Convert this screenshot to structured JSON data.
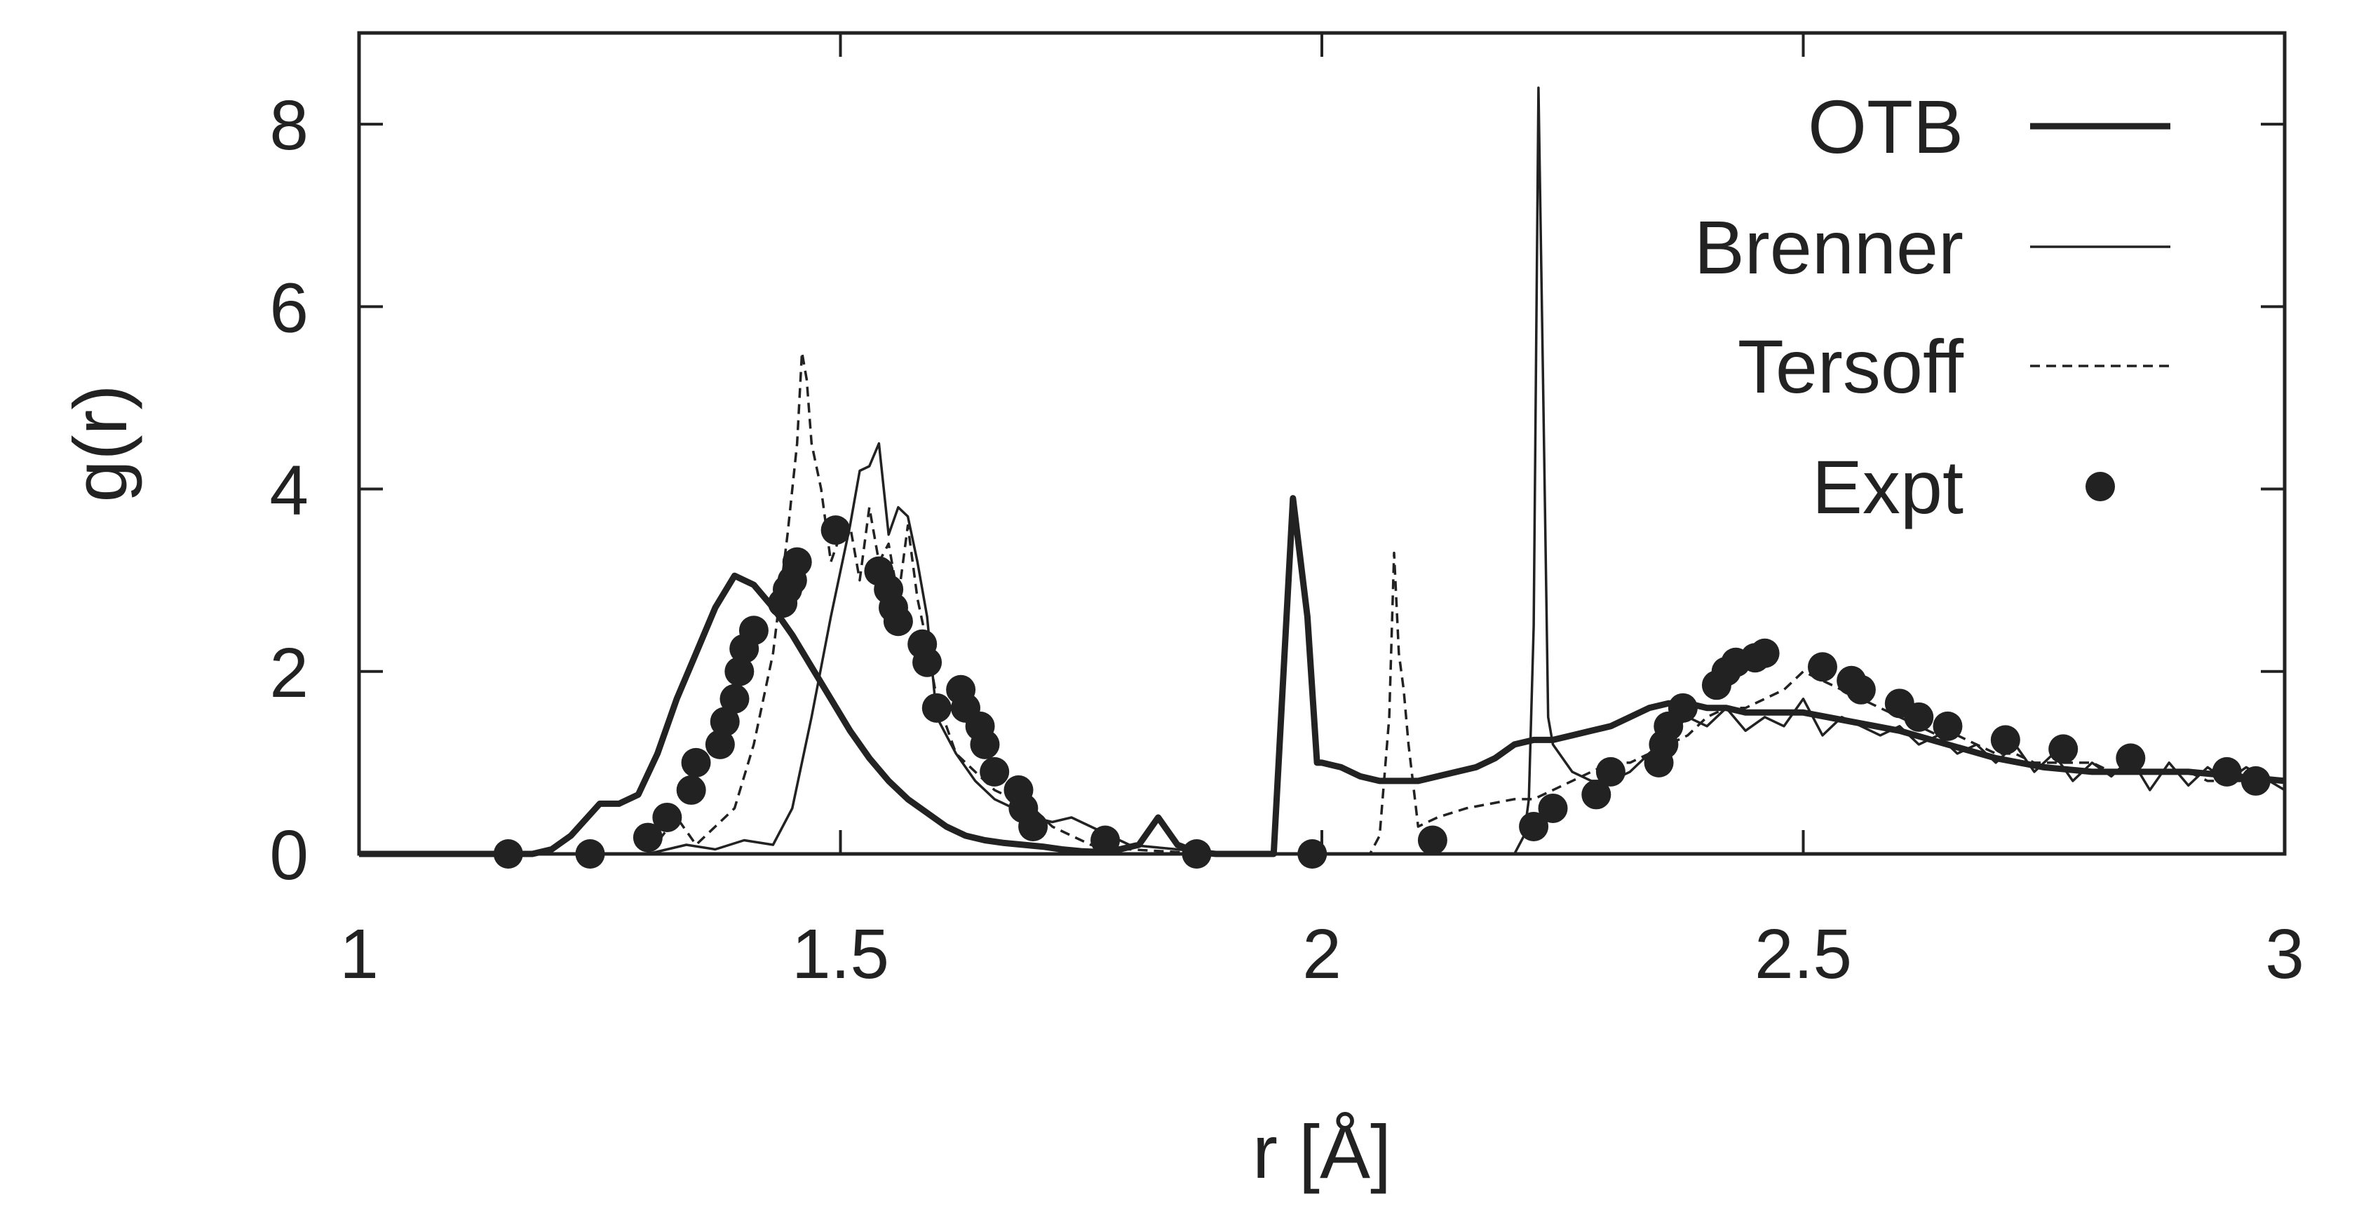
{
  "chart_data": {
    "type": "line",
    "title": "",
    "xlabel": "r [Å]",
    "ylabel": "g(r)",
    "xlim": [
      1,
      3
    ],
    "ylim": [
      0,
      9
    ],
    "xticks": [
      1,
      1.5,
      2,
      2.5,
      3
    ],
    "xtick_labels": [
      "1",
      "1.5",
      "2",
      "2.5",
      "3"
    ],
    "yticks": [
      0,
      2,
      4,
      6,
      8
    ],
    "ytick_labels": [
      "0",
      "2",
      "4",
      "6",
      "8"
    ],
    "grid": false,
    "legend_placement": "top-right",
    "series": [
      {
        "name": "OTB",
        "style": "thick-solid",
        "x": [
          1.0,
          1.18,
          1.2,
          1.22,
          1.25,
          1.27,
          1.29,
          1.31,
          1.33,
          1.35,
          1.37,
          1.39,
          1.41,
          1.43,
          1.45,
          1.47,
          1.49,
          1.51,
          1.53,
          1.55,
          1.57,
          1.59,
          1.61,
          1.63,
          1.65,
          1.67,
          1.69,
          1.71,
          1.73,
          1.75,
          1.77,
          1.79,
          1.81,
          1.83,
          1.85,
          1.87,
          1.89,
          1.91,
          1.93,
          1.95,
          1.97,
          1.985,
          1.995,
          2.0,
          2.02,
          2.04,
          2.06,
          2.08,
          2.1,
          2.12,
          2.14,
          2.16,
          2.18,
          2.2,
          2.22,
          2.24,
          2.26,
          2.28,
          2.3,
          2.32,
          2.34,
          2.36,
          2.38,
          2.4,
          2.42,
          2.44,
          2.46,
          2.48,
          2.5,
          2.55,
          2.6,
          2.65,
          2.7,
          2.75,
          2.8,
          2.85,
          2.9,
          2.95,
          3.0
        ],
        "y": [
          0,
          0,
          0.05,
          0.2,
          0.55,
          0.55,
          0.65,
          1.1,
          1.7,
          2.2,
          2.7,
          3.05,
          2.95,
          2.7,
          2.4,
          2.05,
          1.7,
          1.35,
          1.05,
          0.8,
          0.6,
          0.45,
          0.3,
          0.2,
          0.15,
          0.12,
          0.1,
          0.08,
          0.05,
          0.03,
          0.02,
          0.05,
          0.1,
          0.4,
          0.1,
          0.02,
          0,
          0,
          0,
          0,
          3.9,
          2.6,
          1.0,
          1.0,
          0.95,
          0.85,
          0.8,
          0.8,
          0.8,
          0.85,
          0.9,
          0.95,
          1.05,
          1.2,
          1.25,
          1.25,
          1.3,
          1.35,
          1.4,
          1.5,
          1.6,
          1.65,
          1.65,
          1.6,
          1.6,
          1.55,
          1.55,
          1.55,
          1.55,
          1.45,
          1.35,
          1.2,
          1.05,
          0.95,
          0.9,
          0.9,
          0.9,
          0.85,
          0.8
        ]
      },
      {
        "name": "Brenner",
        "style": "thin-solid",
        "x": [
          1.0,
          1.3,
          1.34,
          1.37,
          1.4,
          1.43,
          1.45,
          1.47,
          1.49,
          1.51,
          1.52,
          1.53,
          1.54,
          1.55,
          1.56,
          1.57,
          1.58,
          1.59,
          1.6,
          1.62,
          1.64,
          1.66,
          1.68,
          1.7,
          1.72,
          1.74,
          1.76,
          1.78,
          1.8,
          1.85,
          1.9,
          1.95,
          2.0,
          2.05,
          2.1,
          2.15,
          2.2,
          2.21,
          2.215,
          2.22,
          2.225,
          2.23,
          2.235,
          2.24,
          2.26,
          2.28,
          2.3,
          2.32,
          2.34,
          2.36,
          2.38,
          2.4,
          2.42,
          2.44,
          2.46,
          2.48,
          2.5,
          2.52,
          2.54,
          2.56,
          2.58,
          2.6,
          2.62,
          2.64,
          2.66,
          2.68,
          2.7,
          2.72,
          2.74,
          2.76,
          2.78,
          2.8,
          2.82,
          2.84,
          2.86,
          2.88,
          2.9,
          2.92,
          2.94,
          2.96,
          3.0
        ],
        "y": [
          0,
          0,
          0.1,
          0.05,
          0.15,
          0.1,
          0.5,
          1.5,
          2.6,
          3.6,
          4.2,
          4.25,
          4.5,
          3.5,
          3.8,
          3.7,
          3.2,
          2.6,
          1.5,
          1.1,
          0.8,
          0.6,
          0.5,
          0.4,
          0.35,
          0.4,
          0.3,
          0.2,
          0.1,
          0.05,
          0,
          0,
          0,
          0,
          0,
          0,
          0,
          0.2,
          0.6,
          2.5,
          8.4,
          5.0,
          1.5,
          1.2,
          0.9,
          0.8,
          0.8,
          0.9,
          1.1,
          1.3,
          1.5,
          1.4,
          1.6,
          1.35,
          1.5,
          1.4,
          1.7,
          1.3,
          1.5,
          1.4,
          1.3,
          1.4,
          1.2,
          1.3,
          1.1,
          1.2,
          1.0,
          1.2,
          0.9,
          1.1,
          0.8,
          1.0,
          0.85,
          1.05,
          0.7,
          1.0,
          0.75,
          0.95,
          0.8,
          0.95,
          0.7
        ]
      },
      {
        "name": "Tersoff",
        "style": "dashed",
        "x": [
          1.0,
          1.3,
          1.33,
          1.35,
          1.37,
          1.39,
          1.41,
          1.43,
          1.445,
          1.455,
          1.46,
          1.465,
          1.47,
          1.48,
          1.49,
          1.5,
          1.51,
          1.52,
          1.53,
          1.54,
          1.55,
          1.56,
          1.57,
          1.58,
          1.59,
          1.6,
          1.62,
          1.64,
          1.66,
          1.68,
          1.7,
          1.72,
          1.74,
          1.76,
          1.8,
          1.85,
          1.9,
          1.95,
          2.0,
          2.05,
          2.06,
          2.07,
          2.075,
          2.08,
          2.085,
          2.09,
          2.1,
          2.12,
          2.15,
          2.2,
          2.22,
          2.24,
          2.26,
          2.28,
          2.3,
          2.32,
          2.34,
          2.36,
          2.38,
          2.4,
          2.42,
          2.44,
          2.46,
          2.48,
          2.5,
          2.52,
          2.54,
          2.56,
          2.58,
          2.6,
          2.62,
          2.64,
          2.66,
          2.68,
          2.7,
          2.72,
          2.74,
          2.76,
          2.78,
          2.8,
          2.82,
          2.84,
          2.86,
          2.88,
          2.9,
          2.92,
          2.94,
          2.96,
          3.0
        ],
        "y": [
          0,
          0,
          0.4,
          0.1,
          0.3,
          0.5,
          1.2,
          2.2,
          3.5,
          4.5,
          5.5,
          5.2,
          4.5,
          4.0,
          3.2,
          3.5,
          3.6,
          3.0,
          3.8,
          3.2,
          3.4,
          2.8,
          3.6,
          2.8,
          2.3,
          1.7,
          1.1,
          0.9,
          0.7,
          0.6,
          0.5,
          0.3,
          0.2,
          0.1,
          0.05,
          0.02,
          0,
          0,
          0,
          0,
          0.2,
          1.5,
          3.3,
          2.2,
          1.8,
          1.2,
          0.3,
          0.4,
          0.5,
          0.6,
          0.6,
          0.7,
          0.8,
          0.9,
          1.0,
          1.0,
          1.1,
          1.2,
          1.3,
          1.5,
          1.6,
          1.6,
          1.7,
          1.8,
          2.0,
          1.9,
          1.8,
          1.7,
          1.6,
          1.5,
          1.4,
          1.3,
          1.3,
          1.2,
          1.1,
          1.1,
          1.0,
          1.0,
          1.0,
          1.0,
          0.9,
          0.9,
          0.9,
          0.9,
          0.9,
          0.8,
          0.8,
          0.8,
          0.8
        ]
      },
      {
        "name": "Expt",
        "style": "points",
        "x": [
          1.155,
          1.24,
          1.3,
          1.32,
          1.345,
          1.35,
          1.375,
          1.38,
          1.39,
          1.395,
          1.4,
          1.41,
          1.44,
          1.445,
          1.45,
          1.455,
          1.495,
          1.54,
          1.55,
          1.555,
          1.56,
          1.585,
          1.59,
          1.6,
          1.625,
          1.63,
          1.645,
          1.65,
          1.66,
          1.685,
          1.69,
          1.7,
          1.775,
          1.87,
          1.99,
          2.115,
          2.22,
          2.24,
          2.285,
          2.3,
          2.35,
          2.355,
          2.36,
          2.375,
          2.41,
          2.42,
          2.43,
          2.45,
          2.46,
          2.52,
          2.55,
          2.56,
          2.6,
          2.62,
          2.65,
          2.71,
          2.77,
          2.84,
          2.94,
          2.97
        ],
        "y": [
          0,
          0,
          0.18,
          0.4,
          0.7,
          1.0,
          1.2,
          1.45,
          1.7,
          2.0,
          2.25,
          2.45,
          2.75,
          2.9,
          3.0,
          3.2,
          3.55,
          3.1,
          2.9,
          2.7,
          2.55,
          2.3,
          2.1,
          1.6,
          1.8,
          1.6,
          1.4,
          1.2,
          0.9,
          0.7,
          0.5,
          0.3,
          0.15,
          0,
          0,
          0.15,
          0.3,
          0.5,
          0.65,
          0.9,
          1.0,
          1.2,
          1.4,
          1.6,
          1.85,
          2.0,
          2.1,
          2.15,
          2.2,
          2.05,
          1.9,
          1.8,
          1.65,
          1.5,
          1.4,
          1.25,
          1.15,
          1.05,
          0.9,
          0.8
        ]
      }
    ]
  }
}
